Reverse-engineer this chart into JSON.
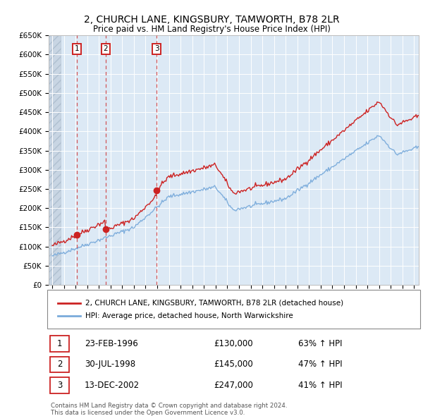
{
  "title": "2, CHURCH LANE, KINGSBURY, TAMWORTH, B78 2LR",
  "subtitle": "Price paid vs. HM Land Registry's House Price Index (HPI)",
  "ylim": [
    0,
    650000
  ],
  "yticks": [
    0,
    50000,
    100000,
    150000,
    200000,
    250000,
    300000,
    350000,
    400000,
    450000,
    500000,
    550000,
    600000,
    650000
  ],
  "sale_dates": [
    1996.12,
    1998.57,
    2002.95
  ],
  "sale_prices": [
    130000,
    145000,
    247000
  ],
  "sale_labels": [
    "1",
    "2",
    "3"
  ],
  "sale_label_info": [
    {
      "num": "1",
      "date": "23-FEB-1996",
      "price": "£130,000",
      "change": "63% ↑ HPI"
    },
    {
      "num": "2",
      "date": "30-JUL-1998",
      "price": "£145,000",
      "change": "47% ↑ HPI"
    },
    {
      "num": "3",
      "date": "13-DEC-2002",
      "price": "£247,000",
      "change": "41% ↑ HPI"
    }
  ],
  "hpi_color": "#7aabdb",
  "price_color": "#cc2222",
  "background_chart": "#dce9f5",
  "footer": "Contains HM Land Registry data © Crown copyright and database right 2024.\nThis data is licensed under the Open Government Licence v3.0.",
  "legend_line1": "2, CHURCH LANE, KINGSBURY, TAMWORTH, B78 2LR (detached house)",
  "legend_line2": "HPI: Average price, detached house, North Warwickshire"
}
